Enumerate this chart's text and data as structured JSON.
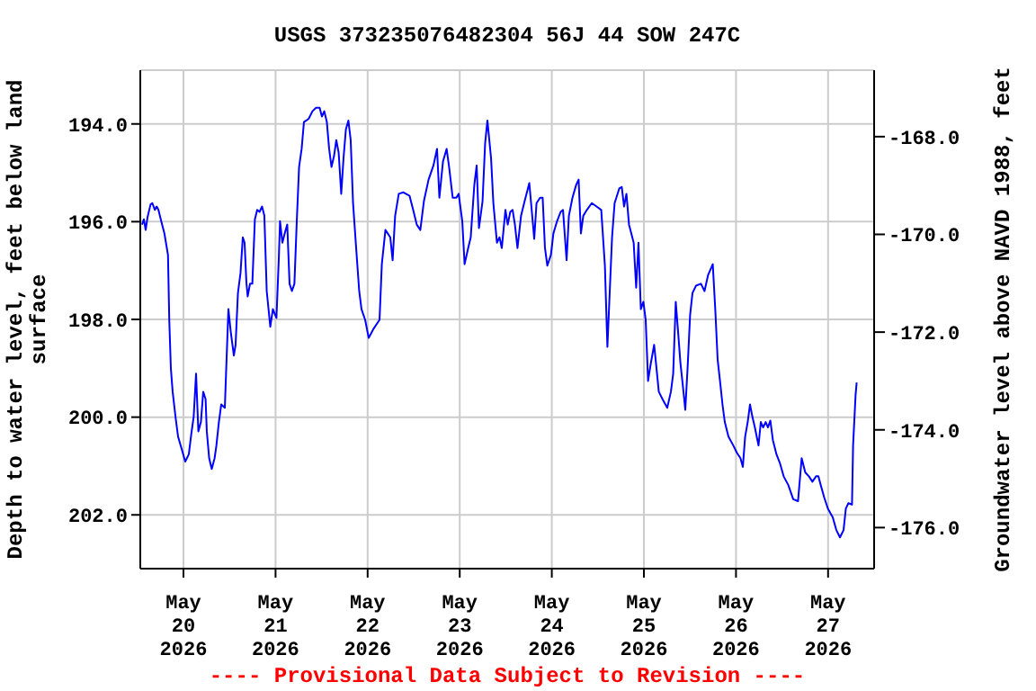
{
  "chart_data": {
    "type": "line",
    "title": "USGS 373235076482304 56J 44 SOW 247C",
    "ylabel": "Depth to water level, feet below land surface",
    "y2label": "Groundwater level above NAVD 1988, feet",
    "annotations": [
      "---- Provisional Data Subject to Revision ----"
    ],
    "xlim": [
      "2026-05-19T12:45",
      "2026-05-27T12:00"
    ],
    "xticks": [
      {
        "value": "2026-05-20",
        "label": "May 20 2026"
      },
      {
        "value": "2026-05-21",
        "label": "May 21 2026"
      },
      {
        "value": "2026-05-22",
        "label": "May 22 2026"
      },
      {
        "value": "2026-05-23",
        "label": "May 23 2026"
      },
      {
        "value": "2026-05-24",
        "label": "May 24 2026"
      },
      {
        "value": "2026-05-25",
        "label": "May 25 2026"
      },
      {
        "value": "2026-05-26",
        "label": "May 26 2026"
      },
      {
        "value": "2026-05-27",
        "label": "May 27 2026"
      }
    ],
    "ylim": [
      203.1,
      192.9
    ],
    "yticks": [
      {
        "value": 194,
        "label": "194.0"
      },
      {
        "value": 196,
        "label": "196.0"
      },
      {
        "value": 198,
        "label": "198.0"
      },
      {
        "value": 200,
        "label": "200.0"
      },
      {
        "value": 202,
        "label": "202.0"
      }
    ],
    "y2lim": [
      -176.84,
      -166.64
    ],
    "y2ticks": [
      {
        "value": -168,
        "label": "-168.0"
      },
      {
        "value": -170,
        "label": "-170.0"
      },
      {
        "value": -172,
        "label": "-172.0"
      },
      {
        "value": -174,
        "label": "-174.0"
      },
      {
        "value": -176,
        "label": "-176.0"
      }
    ],
    "grid": true,
    "series": [
      {
        "color": "#0000ff",
        "x": [
          "2026-05-19T13:13",
          "2026-05-19T13:41",
          "2026-05-19T14:09",
          "2026-05-19T14:38",
          "2026-05-19T15:25",
          "2026-05-19T15:53",
          "2026-05-19T16:33",
          "2026-05-19T17:01",
          "2026-05-19T17:29",
          "2026-05-19T18:05",
          "2026-05-19T19:02",
          "2026-05-19T19:58",
          "2026-05-19T20:18",
          "2026-05-19T20:43",
          "2026-05-19T21:11",
          "2026-05-19T21:59",
          "2026-05-19T22:36",
          "2026-05-19T23:32",
          "2026-05-20T00:28",
          "2026-05-20T01:24",
          "2026-05-20T02:01",
          "2026-05-20T02:40",
          "2026-05-20T03:17",
          "2026-05-20T03:53",
          "2026-05-20T04:33",
          "2026-05-20T05:09",
          "2026-05-20T05:46",
          "2026-05-20T06:05",
          "2026-05-20T06:42",
          "2026-05-20T07:22",
          "2026-05-20T08:07",
          "2026-05-20T08:35",
          "2026-05-20T09:14",
          "2026-05-20T09:51",
          "2026-05-20T10:47",
          "2026-05-20T11:07",
          "2026-05-20T11:43",
          "2026-05-20T12:20",
          "2026-05-20T13:08",
          "2026-05-20T13:35",
          "2026-05-20T14:12",
          "2026-05-20T14:52",
          "2026-05-20T15:28",
          "2026-05-20T15:56",
          "2026-05-20T16:24",
          "2026-05-20T16:44",
          "2026-05-20T17:21",
          "2026-05-20T17:57",
          "2026-05-20T18:37",
          "2026-05-20T19:13",
          "2026-05-20T19:50",
          "2026-05-20T20:29",
          "2026-05-20T21:05",
          "2026-05-20T21:42",
          "2026-05-20T22:38",
          "2026-05-20T23:18",
          "2026-05-21T00:14",
          "2026-05-21T00:50",
          "2026-05-21T01:10",
          "2026-05-21T01:47",
          "2026-05-21T02:23",
          "2026-05-21T03:03",
          "2026-05-21T03:39",
          "2026-05-21T04:16",
          "2026-05-21T04:55",
          "2026-05-21T05:32",
          "2026-05-21T06:08",
          "2026-05-21T06:48",
          "2026-05-21T07:24",
          "2026-05-21T08:01",
          "2026-05-21T08:40",
          "2026-05-21T09:37",
          "2026-05-21T10:33",
          "2026-05-21T11:29",
          "2026-05-21T12:05",
          "2026-05-21T12:42",
          "2026-05-21T13:22",
          "2026-05-21T13:58",
          "2026-05-21T14:35",
          "2026-05-21T15:14",
          "2026-05-21T15:50",
          "2026-05-21T16:27",
          "2026-05-21T17:07",
          "2026-05-21T17:43",
          "2026-05-21T18:20",
          "2026-05-21T18:59",
          "2026-05-21T19:35",
          "2026-05-21T20:12",
          "2026-05-21T21:08",
          "2026-05-21T21:48",
          "2026-05-21T22:24",
          "2026-05-21T23:21",
          "2026-05-22T00:17",
          "2026-05-22T01:33",
          "2026-05-22T03:06",
          "2026-05-22T03:42",
          "2026-05-22T04:38",
          "2026-05-22T05:54",
          "2026-05-22T06:31",
          "2026-05-22T07:10",
          "2026-05-22T08:07",
          "2026-05-22T09:20",
          "2026-05-22T10:55",
          "2026-05-22T11:52",
          "2026-05-22T12:48",
          "2026-05-22T13:44",
          "2026-05-22T14:40",
          "2026-05-22T15:53",
          "2026-05-22T17:09",
          "2026-05-22T18:05",
          "2026-05-22T18:42",
          "2026-05-22T19:38",
          "2026-05-22T20:35",
          "2026-05-22T21:14",
          "2026-05-22T22:10",
          "2026-05-22T23:07",
          "2026-05-22T23:43",
          "2026-05-23T00:40",
          "2026-05-23T01:16",
          "2026-05-23T02:12",
          "2026-05-23T02:52",
          "2026-05-23T03:48",
          "2026-05-23T04:25",
          "2026-05-23T05:01",
          "2026-05-23T05:57",
          "2026-05-23T06:37",
          "2026-05-23T07:13",
          "2026-05-23T08:10",
          "2026-05-23T08:46",
          "2026-05-23T09:42",
          "2026-05-23T10:22",
          "2026-05-23T10:58",
          "2026-05-23T11:55",
          "2026-05-23T12:31",
          "2026-05-23T13:10",
          "2026-05-23T13:47",
          "2026-05-23T14:23",
          "2026-05-23T15:03",
          "2026-05-23T15:59",
          "2026-05-23T16:55",
          "2026-05-23T18:08",
          "2026-05-23T18:48",
          "2026-05-23T19:25",
          "2026-05-23T20:01",
          "2026-05-23T20:57",
          "2026-05-23T21:37",
          "2026-05-23T22:13",
          "2026-05-23T22:50",
          "2026-05-23T23:46",
          "2026-05-24T00:25",
          "2026-05-24T01:22",
          "2026-05-24T02:18",
          "2026-05-24T02:55",
          "2026-05-24T03:51",
          "2026-05-24T04:27",
          "2026-05-24T05:23",
          "2026-05-24T06:20",
          "2026-05-24T06:59",
          "2026-05-24T07:35",
          "2026-05-24T08:12",
          "2026-05-24T09:08",
          "2026-05-24T10:25",
          "2026-05-24T11:40",
          "2026-05-24T12:53",
          "2026-05-24T13:50",
          "2026-05-24T14:29",
          "2026-05-24T15:05",
          "2026-05-24T15:42",
          "2026-05-24T16:22",
          "2026-05-24T17:35",
          "2026-05-24T18:14",
          "2026-05-24T18:50",
          "2026-05-24T19:27",
          "2026-05-24T20:07",
          "2026-05-24T20:43",
          "2026-05-24T21:20",
          "2026-05-24T21:59",
          "2026-05-24T22:35",
          "2026-05-24T23:12",
          "2026-05-24T23:52",
          "2026-05-25T00:28",
          "2026-05-25T01:05",
          "2026-05-25T01:44",
          "2026-05-25T02:40",
          "2026-05-25T03:17",
          "2026-05-25T03:53",
          "2026-05-25T04:50",
          "2026-05-25T06:05",
          "2026-05-25T07:02",
          "2026-05-25T07:38",
          "2026-05-25T08:18",
          "2026-05-25T08:55",
          "2026-05-25T09:31",
          "2026-05-25T10:10",
          "2026-05-25T10:47",
          "2026-05-25T11:23",
          "2026-05-25T12:03",
          "2026-05-25T12:40",
          "2026-05-25T13:35",
          "2026-05-25T14:52",
          "2026-05-25T15:48",
          "2026-05-25T16:44",
          "2026-05-25T17:57",
          "2026-05-25T18:37",
          "2026-05-25T19:13",
          "2026-05-25T19:50",
          "2026-05-25T20:29",
          "2026-05-25T21:05",
          "2026-05-25T22:02",
          "2026-05-25T23:18",
          "2026-05-26T00:14",
          "2026-05-26T01:10",
          "2026-05-26T01:47",
          "2026-05-26T02:23",
          "2026-05-26T03:03",
          "2026-05-26T03:39",
          "2026-05-26T04:16",
          "2026-05-26T04:55",
          "2026-05-26T05:52",
          "2026-05-26T06:28",
          "2026-05-26T07:05",
          "2026-05-26T07:44",
          "2026-05-26T08:20",
          "2026-05-26T08:57",
          "2026-05-26T09:37",
          "2026-05-26T10:33",
          "2026-05-26T11:29",
          "2026-05-26T12:25",
          "2026-05-26T13:38",
          "2026-05-26T14:55",
          "2026-05-26T16:10",
          "2026-05-26T17:07",
          "2026-05-26T18:03",
          "2026-05-26T18:59",
          "2026-05-26T19:55",
          "2026-05-26T20:52",
          "2026-05-26T21:28",
          "2026-05-26T22:05",
          "2026-05-26T23:01",
          "2026-05-26T23:57",
          "2026-05-27T01:13",
          "2026-05-27T02:09",
          "2026-05-27T03:06",
          "2026-05-27T04:02",
          "2026-05-27T04:38",
          "2026-05-27T05:18",
          "2026-05-27T06:14",
          "2026-05-27T06:31",
          "2026-05-27T07:10",
          "2026-05-27T07:27"
        ],
        "values": [
          196.06,
          195.95,
          196.17,
          195.91,
          195.65,
          195.62,
          195.76,
          195.69,
          195.76,
          195.95,
          196.24,
          196.68,
          198.01,
          199.0,
          199.48,
          200.03,
          200.4,
          200.65,
          200.91,
          200.76,
          200.36,
          199.99,
          199.11,
          200.29,
          200.1,
          199.48,
          199.63,
          200.29,
          200.84,
          201.06,
          200.84,
          200.58,
          200.1,
          199.74,
          199.81,
          199.07,
          197.79,
          198.26,
          198.74,
          198.52,
          197.46,
          197.05,
          196.32,
          196.43,
          197.24,
          197.53,
          197.27,
          197.27,
          195.95,
          195.76,
          195.8,
          195.69,
          195.88,
          197.42,
          198.15,
          197.79,
          197.97,
          196.79,
          195.99,
          196.43,
          196.24,
          196.06,
          197.27,
          197.42,
          197.27,
          195.99,
          194.88,
          194.51,
          193.96,
          193.93,
          193.89,
          193.74,
          193.67,
          193.67,
          193.85,
          193.74,
          193.96,
          194.51,
          194.88,
          194.66,
          194.33,
          194.59,
          195.43,
          194.7,
          194.11,
          193.93,
          194.33,
          195.62,
          196.68,
          197.42,
          197.79,
          198.01,
          198.38,
          198.19,
          198.01,
          196.87,
          196.17,
          196.32,
          196.79,
          195.88,
          195.43,
          195.4,
          195.47,
          195.76,
          196.06,
          196.17,
          195.58,
          195.14,
          194.85,
          194.51,
          195.51,
          194.77,
          194.51,
          194.88,
          195.51,
          195.51,
          195.43,
          195.99,
          196.87,
          196.54,
          196.32,
          195.25,
          194.85,
          196.13,
          195.58,
          194.4,
          193.93,
          194.7,
          195.62,
          196.43,
          196.32,
          196.54,
          195.76,
          196.06,
          195.8,
          195.76,
          196.06,
          196.54,
          195.88,
          195.58,
          195.21,
          195.8,
          196.35,
          195.62,
          195.51,
          195.51,
          196.54,
          196.9,
          196.68,
          196.24,
          195.99,
          195.8,
          195.76,
          196.79,
          195.88,
          195.51,
          195.25,
          195.14,
          196.24,
          195.88,
          195.76,
          195.62,
          195.69,
          195.76,
          196.9,
          198.56,
          197.46,
          196.32,
          195.62,
          195.32,
          195.29,
          195.69,
          195.43,
          196.06,
          196.24,
          196.43,
          197.35,
          196.43,
          197.79,
          197.64,
          198.01,
          199.26,
          198.93,
          198.52,
          199.0,
          199.48,
          199.63,
          199.81,
          199.48,
          199.11,
          197.64,
          198.26,
          198.89,
          199.37,
          199.85,
          199.0,
          197.9,
          197.46,
          197.31,
          197.27,
          197.42,
          197.09,
          196.87,
          197.82,
          198.82,
          199.26,
          199.74,
          200.1,
          200.4,
          200.58,
          200.73,
          200.84,
          201.02,
          200.4,
          200.1,
          199.74,
          199.99,
          200.21,
          200.58,
          200.1,
          200.21,
          200.1,
          200.21,
          200.07,
          200.47,
          200.76,
          200.95,
          201.21,
          201.39,
          201.68,
          201.72,
          200.84,
          201.13,
          201.21,
          201.32,
          201.21,
          201.21,
          201.39,
          201.65,
          201.87,
          202.05,
          202.31,
          202.46,
          202.31,
          201.87,
          201.76,
          201.79,
          200.58,
          199.55,
          199.29
        ]
      }
    ]
  }
}
